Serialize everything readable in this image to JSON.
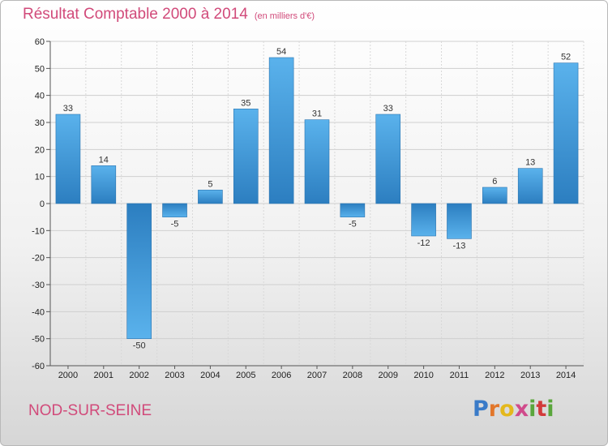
{
  "header": {
    "title": "Résultat Comptable 2000 à 2014",
    "unit": "(en milliers d'€)"
  },
  "footer": {
    "commune": "NOD-SUR-SEINE",
    "logo": "Proxiti"
  },
  "colors": {
    "bar_light": "#5ab2ec",
    "bar_dark": "#2c7ec0",
    "accent": "#d14a7a"
  },
  "chart_data": {
    "type": "bar",
    "title": "Résultat Comptable 2000 à 2014",
    "xlabel": "",
    "ylabel": "",
    "categories": [
      "2000",
      "2001",
      "2002",
      "2003",
      "2004",
      "2005",
      "2006",
      "2007",
      "2008",
      "2009",
      "2010",
      "2011",
      "2012",
      "2013",
      "2014"
    ],
    "values": [
      33,
      14,
      -50,
      -5,
      5,
      35,
      54,
      31,
      -5,
      33,
      -12,
      -13,
      6,
      13,
      52
    ],
    "ylim": [
      -60,
      60
    ],
    "yticks": [
      60,
      50,
      40,
      30,
      20,
      10,
      0,
      -10,
      -20,
      -30,
      -40,
      -50,
      -60
    ],
    "grid": true,
    "legend": "none"
  }
}
